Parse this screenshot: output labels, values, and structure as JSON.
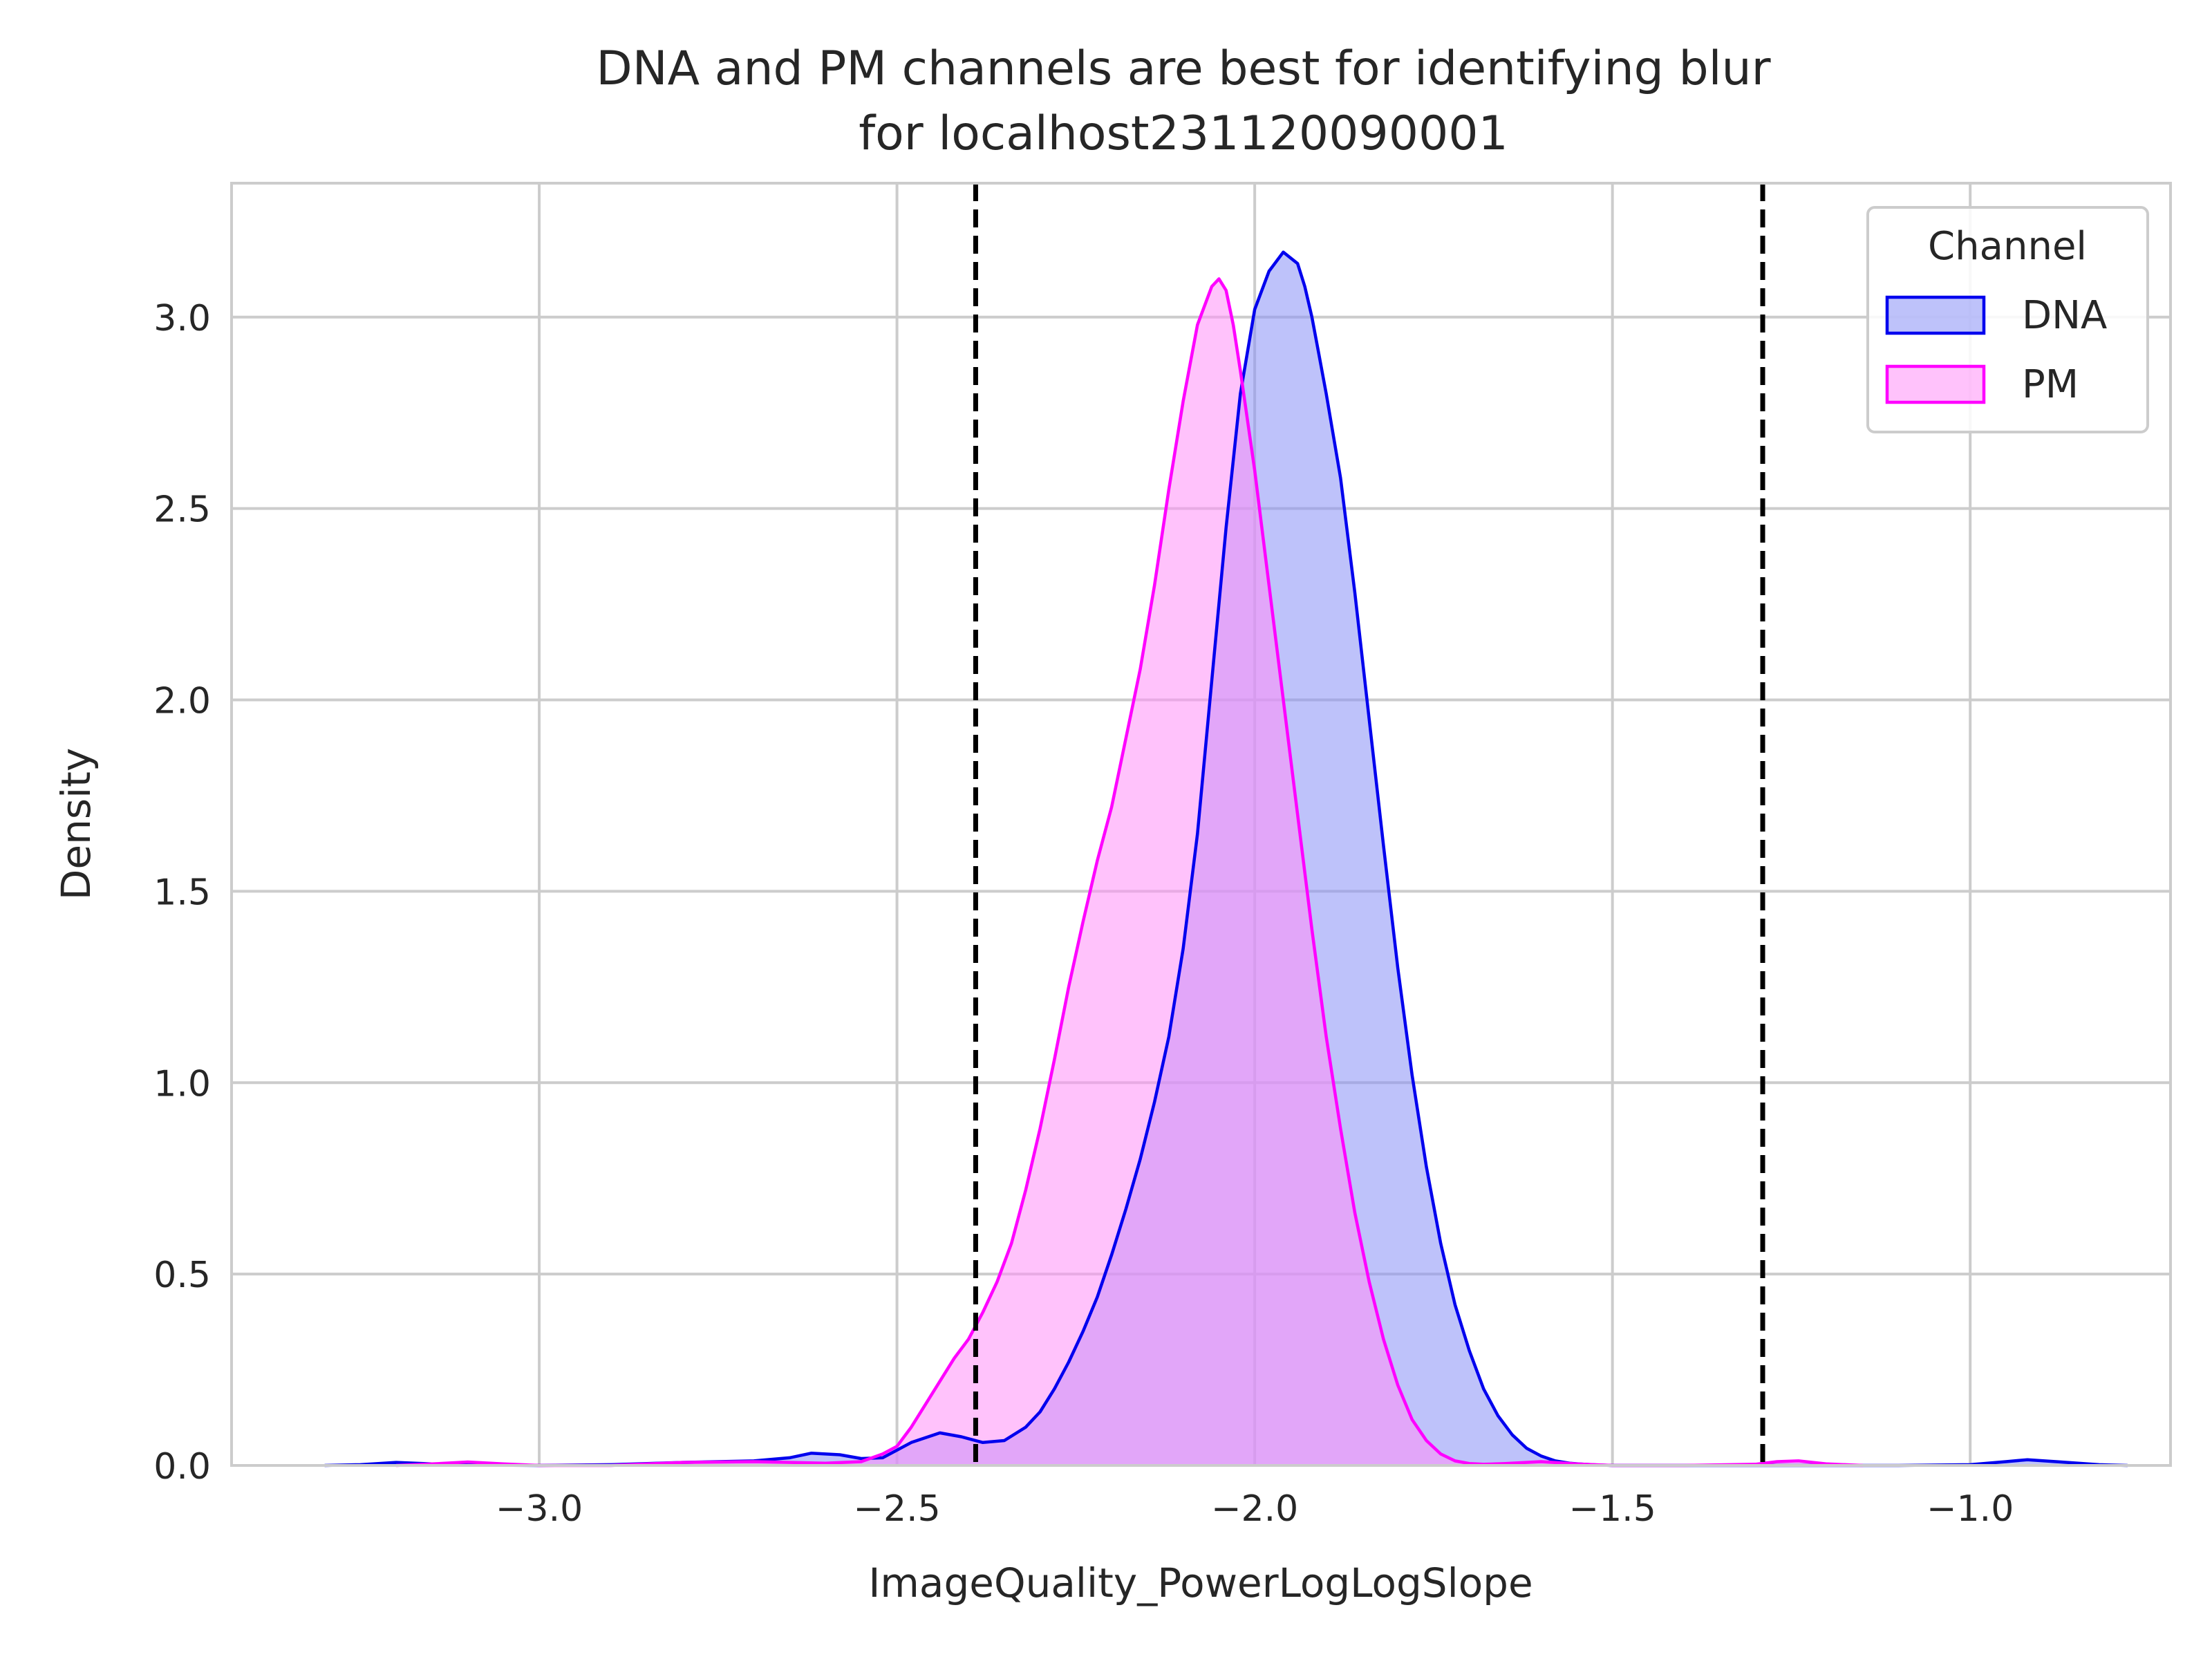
{
  "chart_data": {
    "type": "area",
    "title_line1": "DNA and PM channels are best for identifying blur",
    "title_line2": "for localhost231120090001",
    "xlabel": "ImageQuality_PowerLogLogSlope",
    "ylabel": "Density",
    "xlim": [
      -3.43,
      -0.72
    ],
    "ylim": [
      0,
      3.35
    ],
    "xticks": [
      -3.0,
      -2.5,
      -2.0,
      -1.5,
      -1.0
    ],
    "xtick_labels": [
      "−3.0",
      "−2.5",
      "−2.0",
      "−1.5",
      "−1.0"
    ],
    "yticks": [
      0.0,
      0.5,
      1.0,
      1.5,
      2.0,
      2.5,
      3.0
    ],
    "ytick_labels": [
      "0.0",
      "0.5",
      "1.0",
      "1.5",
      "2.0",
      "2.5",
      "3.0"
    ],
    "grid": true,
    "legend": {
      "title": "Channel",
      "position": "top-right"
    },
    "threshold_lines": [
      -2.39,
      -1.29
    ],
    "threshold_color": "#000000",
    "series": [
      {
        "name": "DNA",
        "color": "#0000ee",
        "fill": "#8890f5",
        "x": [
          -3.3,
          -3.25,
          -3.2,
          -3.15,
          -3.1,
          -3.0,
          -2.9,
          -2.8,
          -2.75,
          -2.7,
          -2.65,
          -2.62,
          -2.58,
          -2.55,
          -2.52,
          -2.48,
          -2.44,
          -2.41,
          -2.38,
          -2.35,
          -2.32,
          -2.3,
          -2.28,
          -2.26,
          -2.24,
          -2.22,
          -2.2,
          -2.18,
          -2.16,
          -2.14,
          -2.12,
          -2.1,
          -2.08,
          -2.06,
          -2.04,
          -2.02,
          -2.0,
          -1.98,
          -1.96,
          -1.94,
          -1.93,
          -1.92,
          -1.91,
          -1.9,
          -1.88,
          -1.86,
          -1.84,
          -1.82,
          -1.8,
          -1.78,
          -1.76,
          -1.74,
          -1.72,
          -1.7,
          -1.68,
          -1.66,
          -1.64,
          -1.62,
          -1.6,
          -1.58,
          -1.56,
          -1.54,
          -1.52,
          -1.5,
          -1.45,
          -1.4,
          -1.3,
          -1.2,
          -1.1,
          -1.0,
          -0.95,
          -0.92,
          -0.88,
          -0.82,
          -0.78
        ],
        "y": [
          0.0,
          0.002,
          0.008,
          0.004,
          0.001,
          0.0,
          0.002,
          0.008,
          0.01,
          0.012,
          0.02,
          0.032,
          0.028,
          0.018,
          0.02,
          0.06,
          0.085,
          0.075,
          0.06,
          0.065,
          0.1,
          0.14,
          0.2,
          0.27,
          0.35,
          0.44,
          0.55,
          0.67,
          0.8,
          0.95,
          1.12,
          1.35,
          1.65,
          2.05,
          2.45,
          2.8,
          3.02,
          3.12,
          3.17,
          3.14,
          3.08,
          3.0,
          2.9,
          2.8,
          2.58,
          2.28,
          1.95,
          1.62,
          1.3,
          1.02,
          0.78,
          0.58,
          0.42,
          0.3,
          0.2,
          0.13,
          0.08,
          0.045,
          0.025,
          0.012,
          0.006,
          0.003,
          0.001,
          0.0,
          0.0,
          0.0,
          0.0,
          0.0,
          0.0,
          0.002,
          0.01,
          0.015,
          0.01,
          0.002,
          0.0
        ]
      },
      {
        "name": "PM",
        "color": "#ff00ff",
        "fill": "#ff90f8",
        "x": [
          -3.2,
          -3.15,
          -3.1,
          -3.05,
          -3.0,
          -2.9,
          -2.8,
          -2.7,
          -2.6,
          -2.55,
          -2.52,
          -2.5,
          -2.48,
          -2.46,
          -2.44,
          -2.42,
          -2.4,
          -2.38,
          -2.36,
          -2.34,
          -2.32,
          -2.3,
          -2.28,
          -2.26,
          -2.24,
          -2.22,
          -2.2,
          -2.18,
          -2.16,
          -2.14,
          -2.12,
          -2.1,
          -2.08,
          -2.06,
          -2.05,
          -2.04,
          -2.03,
          -2.02,
          -2.0,
          -1.98,
          -1.96,
          -1.94,
          -1.92,
          -1.9,
          -1.88,
          -1.86,
          -1.84,
          -1.82,
          -1.8,
          -1.78,
          -1.76,
          -1.74,
          -1.72,
          -1.7,
          -1.68,
          -1.65,
          -1.6,
          -1.55,
          -1.5,
          -1.4,
          -1.3,
          -1.27,
          -1.24,
          -1.2,
          -1.15
        ],
        "y": [
          0.0,
          0.004,
          0.009,
          0.004,
          0.0,
          0.0,
          0.008,
          0.01,
          0.006,
          0.01,
          0.03,
          0.05,
          0.1,
          0.16,
          0.22,
          0.28,
          0.33,
          0.4,
          0.48,
          0.58,
          0.72,
          0.88,
          1.06,
          1.25,
          1.42,
          1.58,
          1.72,
          1.9,
          2.08,
          2.3,
          2.55,
          2.78,
          2.98,
          3.08,
          3.1,
          3.07,
          2.98,
          2.86,
          2.6,
          2.3,
          2.0,
          1.7,
          1.4,
          1.12,
          0.88,
          0.66,
          0.48,
          0.33,
          0.21,
          0.12,
          0.065,
          0.03,
          0.012,
          0.005,
          0.003,
          0.005,
          0.01,
          0.004,
          0.0,
          0.0,
          0.003,
          0.01,
          0.012,
          0.004,
          0.0
        ]
      }
    ]
  }
}
